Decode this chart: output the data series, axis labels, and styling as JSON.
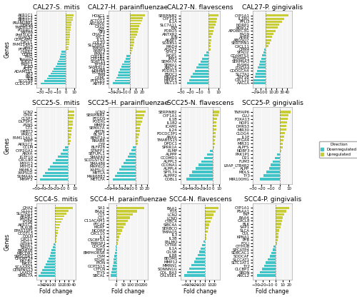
{
  "subplots": [
    {
      "title": "CAL27-S. mitis",
      "up_genes": [
        "AKR1C1",
        "AKR1C3",
        "AKR1C2",
        "PRAM1BP1",
        "CERS6",
        "TMEM130",
        "PODXL2",
        "KRT6A",
        "PHF7UL4",
        "LGALS1",
        "CEACAM1",
        "CXCL1",
        "FAM114A1",
        "VAV3",
        "PTPN22"
      ],
      "up_values": [
        9,
        8,
        8,
        7,
        7,
        6,
        6,
        5,
        5,
        5,
        4,
        4,
        4,
        3,
        3
      ],
      "down_genes": [
        "CYR61",
        "CDH5",
        "RAD",
        "Tensin3",
        "IGKV1",
        "TMTC1",
        "JCAD",
        "ACE2",
        "ADAMTS1",
        "SH3",
        "RN1",
        "SLB",
        "SCCLS8",
        "CCDC1P1"
      ],
      "down_values": [
        -5,
        -6,
        -7,
        -8,
        -9,
        -10,
        -12,
        -14,
        -16,
        -18,
        -20,
        -22,
        -25,
        -30
      ],
      "xlim": [
        -35,
        12
      ],
      "xticks": [
        -30,
        -20,
        -10,
        0,
        10
      ]
    },
    {
      "title": "CAL27-H. parainfluenzae",
      "up_genes": [
        "HOXC1",
        "FC1",
        "ACTO11",
        "ARG900",
        "CXLO",
        "A7F",
        "BHJ",
        "CHAC1",
        "STC2",
        "IL1A",
        "COL20",
        "SLC20A1",
        "TMEM1",
        "RABF4",
        "PANI4"
      ],
      "up_values": [
        25,
        22,
        20,
        18,
        16,
        14,
        13,
        12,
        10,
        8,
        7,
        6,
        5,
        4,
        3
      ],
      "down_genes": [
        "CYP1B1",
        "CYP1B2",
        "SORT1S",
        "TPTP4",
        "SAMHD1",
        "CHDB8",
        "TB0282",
        "TM9",
        "CAML",
        "PTPCD1",
        "ABTP3"
      ],
      "down_values": [
        -5,
        -7,
        -9,
        -12,
        -14,
        -16,
        -18,
        -20,
        -22,
        -24,
        -28
      ],
      "xlim": [
        -35,
        30
      ],
      "xticks": [
        -30,
        -20,
        -10,
        0,
        10,
        20
      ]
    },
    {
      "title": "CAL27-N. flavescens",
      "up_genes": [
        "SERPINB2",
        "CYF1A1",
        "IL1A",
        "SLC7A11",
        "TNF",
        "PORO5",
        "ANTXR2",
        "JUN",
        "AKAP7",
        "SORBS1",
        "MAD4",
        "AOA13"
      ],
      "up_values": [
        10,
        9,
        8,
        7,
        6,
        5,
        4,
        3,
        3,
        2,
        2,
        2
      ],
      "down_genes": [
        "STYL2",
        "MOP1",
        "IMP1",
        "SEMA7A",
        "SEMA1",
        "AMCL5",
        "PODXL3",
        "BSDC1",
        "MRAP3",
        "MPDF3",
        "WLC13"
      ],
      "down_values": [
        -3,
        -5,
        -7,
        -9,
        -11,
        -13,
        -15,
        -17,
        -19,
        -21,
        -23
      ],
      "xlim": [
        -30,
        12
      ],
      "xticks": [
        -30,
        -20,
        -10,
        0,
        10
      ]
    },
    {
      "title": "CAL27-P. gingivalis",
      "up_genes": [
        "CYP1A1",
        "IL1BU",
        "PPLI3",
        "NORP1",
        "AKW12",
        "APOBEC3G",
        "FAG9",
        "AHRP",
        "ABOSO7",
        "SERTPIN1",
        "CXCL11"
      ],
      "up_values": [
        42,
        35,
        30,
        25,
        22,
        18,
        15,
        12,
        10,
        8,
        5
      ],
      "down_genes": [
        "CPM4",
        "SFAD2",
        "CDAMTS3",
        "STAMPL1",
        "SERPNA3",
        "FASM4",
        "LTADA4",
        "CDDGCA4",
        "SLCTA1",
        "ZAF1B",
        "CXCL10",
        "AACLA"
      ],
      "down_values": [
        -3,
        -5,
        -7,
        -9,
        -11,
        -13,
        -15,
        -17,
        -19,
        -21,
        -23,
        -25
      ],
      "xlim": [
        -25,
        50
      ],
      "xticks": [
        -20,
        -10,
        0,
        10,
        20,
        30,
        40
      ]
    },
    {
      "title": "SCC25-S. mitis",
      "up_genes": [
        "LCN2",
        "CHIA",
        "CLSP1",
        "DLFSP1",
        "ASNS",
        "CT1",
        "H4BT3",
        "PAKCL",
        "FAM114A1",
        "TMPF",
        "AKR1C2"
      ],
      "up_values": [
        10,
        9,
        8,
        7,
        7,
        6,
        5,
        5,
        4,
        4,
        3
      ],
      "down_genes": [
        "CCLM",
        "CYP2GA1",
        "ANXA",
        "IGTF10",
        "CXCL90",
        "MYH13",
        "MYH14",
        "MAMLS",
        "XAP5LD",
        "SUMA4A",
        "MHPF3"
      ],
      "down_values": [
        -5,
        -8,
        -12,
        -16,
        -20,
        -24,
        -28,
        -32,
        -36,
        -40,
        -44
      ],
      "xlim": [
        -50,
        12
      ],
      "xticks": [
        -50,
        -40,
        -30,
        -20,
        -10,
        0,
        10
      ]
    },
    {
      "title": "SCC25-H. parainfluenzae",
      "up_genes": [
        "LCN2",
        "SERPINB2",
        "PTGDS",
        "PODXL",
        "MMP9",
        "SEMA7A",
        "AMTN",
        "BL3P1",
        "BPNT2A",
        "RNAB8",
        "CYP"
      ],
      "up_values": [
        18,
        15,
        13,
        11,
        9,
        8,
        7,
        6,
        5,
        4,
        3
      ],
      "down_genes": [
        "BLFP28",
        "STNFP1",
        "SEFUPL1",
        "SMAP40",
        "SCDGSTS3",
        "SMA486",
        "MAPXL0",
        "XAP5LD",
        "METLA",
        "MAR6883",
        "METLFA"
      ],
      "down_values": [
        -5,
        -8,
        -12,
        -15,
        -18,
        -22,
        -26,
        -30,
        -34,
        -38,
        -42
      ],
      "xlim": [
        -50,
        22
      ],
      "xticks": [
        -50,
        -40,
        -30,
        -20,
        -10,
        0,
        10,
        20
      ]
    },
    {
      "title": "SCC25-N. flavescens",
      "up_genes": [
        "SERPINB2",
        "CYF1A1",
        "IL1B",
        "IL1B2",
        "ICAM1",
        "IL24",
        "POCDC3P1",
        "ANXA",
        "TMAB5S15",
        "DPDC1",
        "SPRR1A"
      ],
      "up_values": [
        10,
        9,
        7,
        6,
        5,
        5,
        4,
        4,
        3,
        3,
        2
      ],
      "down_genes": [
        "ELMP",
        "ALPPP",
        "CCOMD1",
        "ALPPL3",
        "CCONA1",
        "ALPPL4",
        "SPTL7A",
        "ALPPP2",
        "COBL1"
      ],
      "down_values": [
        -5,
        -10,
        -15,
        -20,
        -25,
        -30,
        -35,
        -40,
        -45
      ],
      "xlim": [
        -55,
        12
      ],
      "xticks": [
        -50,
        -40,
        -30,
        -20,
        -10,
        0,
        10
      ]
    },
    {
      "title": "SCC25-P. gingivalis",
      "up_genes": [
        "TNFAIP6",
        "GLU",
        "FOXA13",
        "NOP1",
        "DHRS3",
        "MIR30",
        "CLOG4",
        "IL1E",
        "PTGA4",
        "MIR31",
        "ALPFS",
        "NDBF3"
      ],
      "up_values": [
        12,
        10,
        9,
        8,
        7,
        7,
        6,
        5,
        4,
        3,
        3,
        2
      ],
      "down_genes": [
        "PAK1P1",
        "D21",
        "FUM3",
        "LRAP_LTB4R2",
        "ALPP",
        "MDLS",
        "TY3",
        "MIR100HG"
      ],
      "down_values": [
        -3,
        -5,
        -8,
        -10,
        -12,
        -15,
        -18,
        -22
      ],
      "xlim": [
        -30,
        14
      ],
      "xticks": [
        -30,
        -20,
        -10,
        0,
        10
      ]
    },
    {
      "title": "SCC4-S. mitis",
      "up_genes": [
        "CHA2",
        "CCLL1",
        "SLCTA11",
        "ARDB1",
        "PHOK5",
        "FOSB",
        "AKR1C2",
        "PLAUB",
        "EPAS1SP1",
        "CCOT13",
        "COLN",
        "CXCL1",
        "CACL1"
      ],
      "up_values": [
        38,
        30,
        25,
        20,
        17,
        14,
        11,
        9,
        7,
        6,
        5,
        4,
        3
      ],
      "down_genes": [
        "LMAR7",
        "SPAD3",
        "BRAB1B",
        "MBCDR1",
        "SMSCDR1",
        "CHORF24",
        "NSCB1",
        "MSA1",
        "SCAAAS3",
        "CENPNS13",
        "LAAD2",
        "SMBL7A"
      ],
      "down_values": [
        -3,
        -5,
        -7,
        -9,
        -11,
        -14,
        -17,
        -20,
        -23,
        -27,
        -31,
        -35
      ],
      "xlim": [
        -40,
        45
      ],
      "xticks": [
        -30,
        -20,
        -10,
        0,
        10,
        20,
        30,
        40
      ]
    },
    {
      "title": "SCC4-H. parainfluenzae",
      "up_genes": [
        "SA1",
        "BAA2",
        "C1S",
        "CT1",
        "C11ACAM1",
        "PTCAF",
        "MGRF",
        "NCORP",
        "CXCL10",
        "IL3",
        "CSCBF1A",
        "TMRSP1"
      ],
      "up_values": [
        200,
        150,
        120,
        100,
        80,
        65,
        50,
        40,
        30,
        22,
        15,
        10
      ],
      "down_genes": [
        "CDCA8",
        "TMF3",
        "BMPHORSB",
        "CSM",
        "STGM",
        "PION",
        "GCPTS13",
        "CTFLN",
        "TTYS",
        "SBCAL"
      ],
      "down_values": [
        -3,
        -5,
        -8,
        -12,
        -16,
        -20,
        -25,
        -30,
        -35,
        -40
      ],
      "xlim": [
        -55,
        225
      ],
      "xticks": [
        0,
        50,
        100,
        150,
        200
      ]
    },
    {
      "title": "SCC4-N. flavescens",
      "up_genes": [
        "BAA1",
        "FDS",
        "LCN2",
        "LCND",
        "CYBC4",
        "SIBC4A",
        "SERBCO",
        "TMPAO5",
        "IL3",
        "IL3B"
      ],
      "up_values": [
        28,
        22,
        18,
        15,
        12,
        10,
        8,
        6,
        4,
        3
      ],
      "down_genes": [
        "PALMO",
        "CYTR6",
        "IL1A",
        "CILSB",
        "IL88",
        "BEOM1",
        "MMP12",
        "MMRN1",
        "SONNN1G",
        "COL_BA3",
        "CAL1SE1"
      ],
      "down_values": [
        -3,
        -5,
        -8,
        -11,
        -14,
        -18,
        -22,
        -27,
        -32,
        -37,
        -42
      ],
      "xlim": [
        -50,
        32
      ],
      "xticks": [
        -40,
        -30,
        -20,
        -10,
        0,
        10,
        20
      ]
    },
    {
      "title": "SCC4-P. gingivalis",
      "up_genes": [
        "CYP1A1",
        "PSAA1",
        "TNF",
        "BAA4",
        "CXCL8",
        "BLK",
        "SAP1",
        "SLCA",
        "CUL",
        "KPNA1",
        "PFB",
        "FOLI"
      ],
      "up_values": [
        20,
        16,
        13,
        11,
        9,
        8,
        7,
        5,
        4,
        4,
        3,
        2
      ],
      "down_genes": [
        "CITHUB",
        "SPCATP4",
        "SDBCAC1",
        "SODCAF",
        "SLCCAT1",
        "SLTC1AT1",
        "TY2",
        "CLCBP1",
        "SBDN",
        "ANCL2"
      ],
      "down_values": [
        -3,
        -5,
        -7,
        -9,
        -12,
        -15,
        -18,
        -21,
        -24,
        -28
      ],
      "xlim": [
        -35,
        25
      ],
      "xticks": [
        -30,
        -20,
        -10,
        0,
        10,
        20
      ]
    }
  ],
  "up_color": "#c8cc35",
  "down_color": "#40c4c8",
  "background_color": "#ffffff",
  "panel_bg": "#f5f5f5",
  "ylabel": "Genes",
  "xlabel": "Fold change",
  "legend_down_label": "Downregulated",
  "legend_up_label": "Upregulated",
  "title_fontsize": 6.5,
  "tick_fontsize": 4.0,
  "label_fontsize": 5.5,
  "bar_height": 0.7
}
